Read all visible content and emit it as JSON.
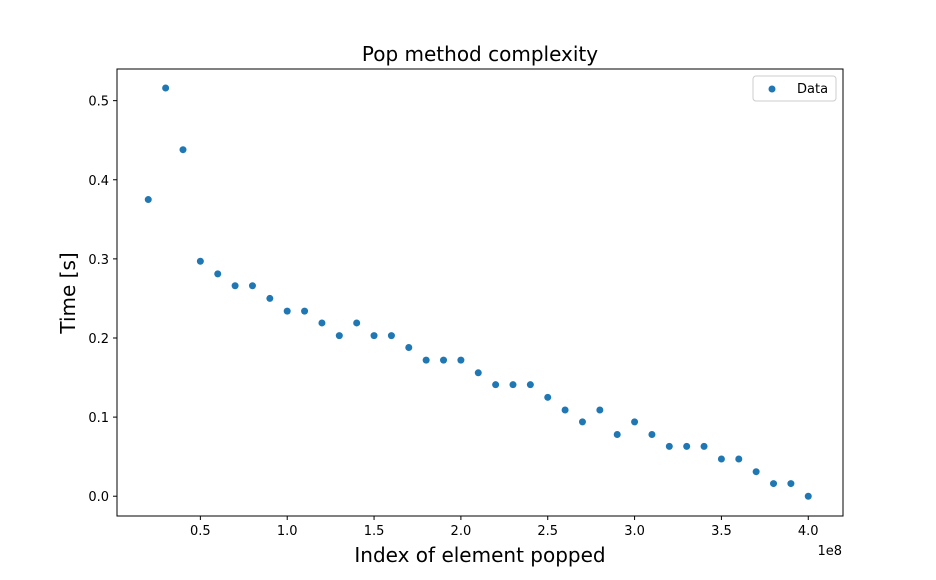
{
  "chart_data": {
    "type": "scatter",
    "title": "Pop method complexity",
    "xlabel": "Index of element popped",
    "ylabel": "Time [s]",
    "x_offset_label": "1e8",
    "xlim": [
      0.02,
      4.2
    ],
    "ylim": [
      -0.025,
      0.54
    ],
    "xticks": [
      0.5,
      1.0,
      1.5,
      2.0,
      2.5,
      3.0,
      3.5,
      4.0
    ],
    "xtick_labels": [
      "0.5",
      "1.0",
      "1.5",
      "2.0",
      "2.5",
      "3.0",
      "3.5",
      "4.0"
    ],
    "yticks": [
      0.0,
      0.1,
      0.2,
      0.3,
      0.4,
      0.5
    ],
    "ytick_labels": [
      "0.0",
      "0.1",
      "0.2",
      "0.3",
      "0.4",
      "0.5"
    ],
    "grid": false,
    "legend_position": "top-right",
    "color": "#1f77b4",
    "series": [
      {
        "name": "Data",
        "x": [
          0.2,
          0.3,
          0.4,
          0.5,
          0.6,
          0.7,
          0.8,
          0.9,
          1.0,
          1.1,
          1.2,
          1.3,
          1.4,
          1.5,
          1.6,
          1.7,
          1.8,
          1.9,
          2.0,
          2.1,
          2.2,
          2.3,
          2.4,
          2.5,
          2.6,
          2.7,
          2.8,
          2.9,
          3.0,
          3.1,
          3.2,
          3.3,
          3.4,
          3.5,
          3.6,
          3.7,
          3.8,
          3.9,
          4.0
        ],
        "y": [
          0.375,
          0.516,
          0.438,
          0.297,
          0.281,
          0.266,
          0.266,
          0.25,
          0.234,
          0.234,
          0.219,
          0.203,
          0.219,
          0.203,
          0.203,
          0.188,
          0.172,
          0.172,
          0.172,
          0.156,
          0.141,
          0.141,
          0.141,
          0.125,
          0.109,
          0.094,
          0.109,
          0.078,
          0.094,
          0.078,
          0.063,
          0.063,
          0.063,
          0.047,
          0.047,
          0.031,
          0.016,
          0.016,
          0.0
        ]
      }
    ]
  }
}
